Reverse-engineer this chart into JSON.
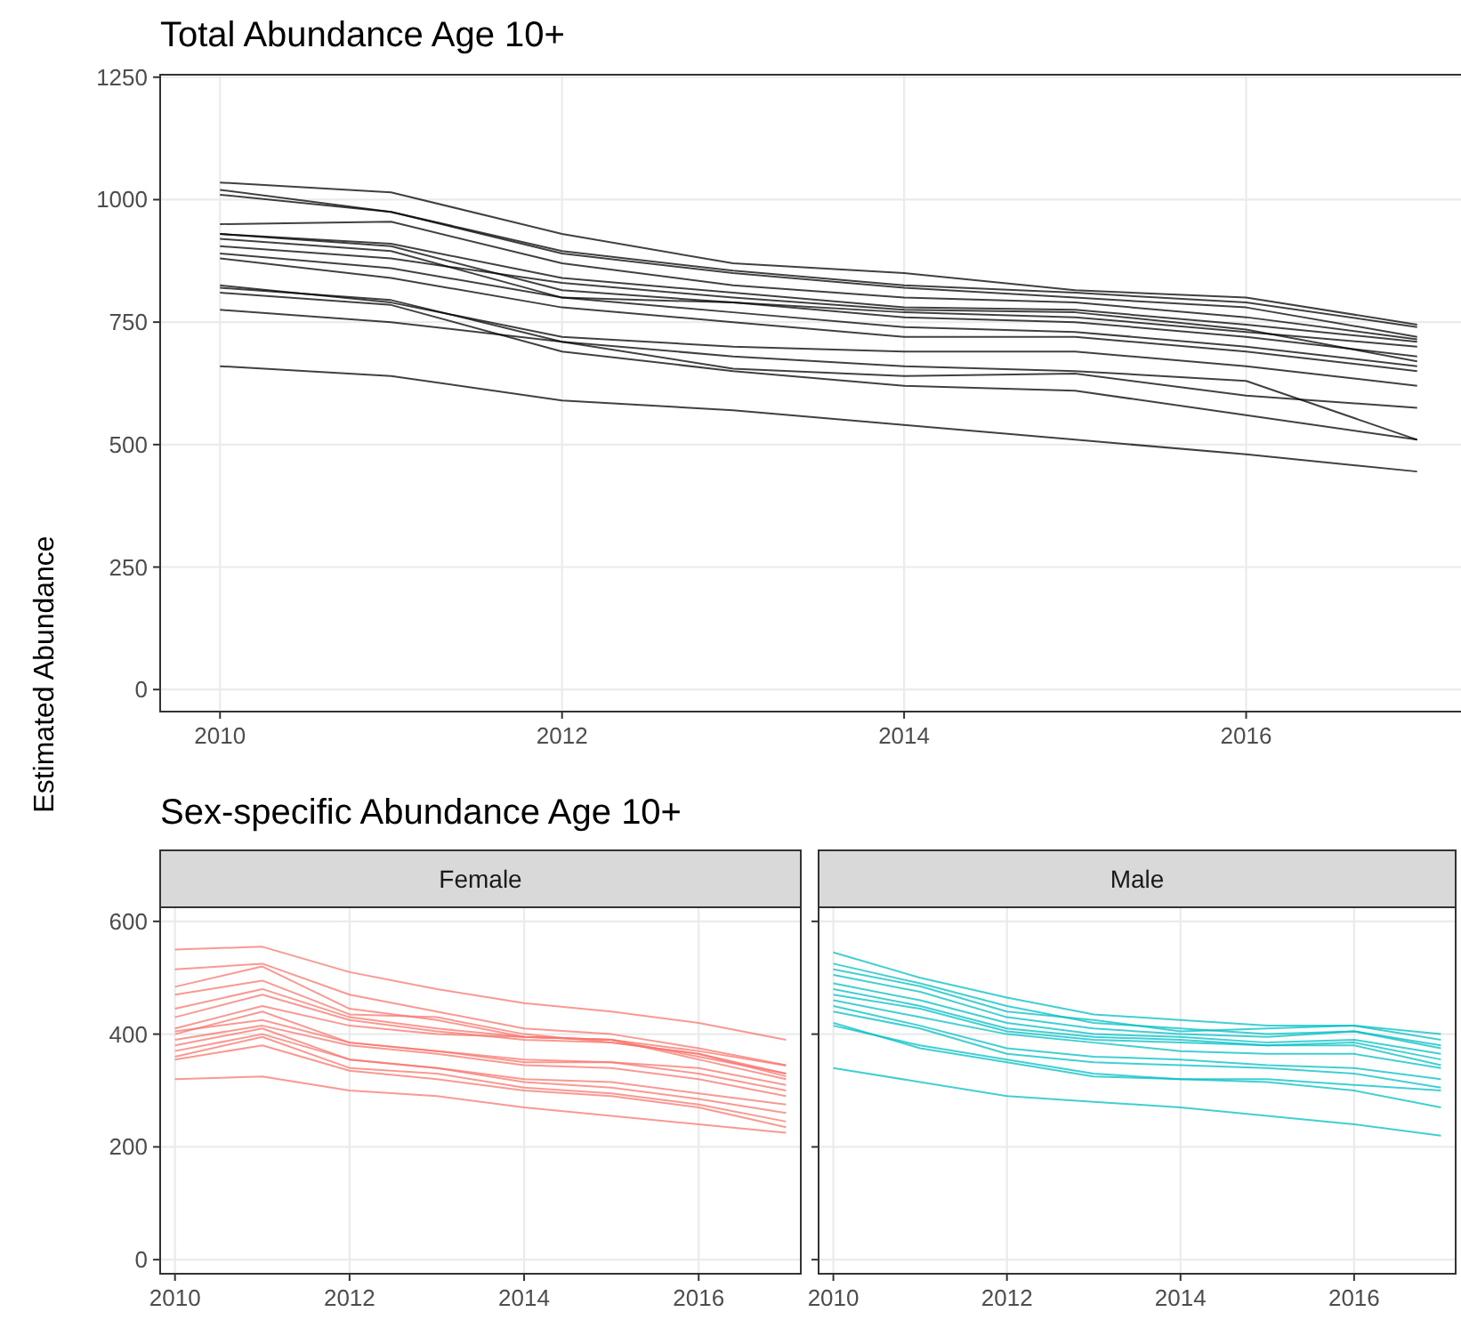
{
  "chart_data": [
    {
      "type": "line",
      "title": "Total Abundance Age 10+",
      "ylabel": "Estimated Abundance",
      "x": [
        2010,
        2011,
        2012,
        2013,
        2014,
        2015,
        2016,
        2017
      ],
      "xlim": [
        2009.65,
        2017.35
      ],
      "ylim": [
        -45,
        1255
      ],
      "xticks": [
        2010,
        2012,
        2014,
        2016
      ],
      "yticks": [
        0,
        250,
        500,
        750,
        1000,
        1250
      ],
      "grid": true,
      "series": [
        {
          "color": "#000000",
          "values": [
            1035,
            1015,
            930,
            870,
            850,
            815,
            800,
            745
          ]
        },
        {
          "color": "#000000",
          "values": [
            1020,
            975,
            895,
            855,
            825,
            810,
            790,
            740
          ]
        },
        {
          "color": "#000000",
          "values": [
            1010,
            975,
            890,
            850,
            820,
            800,
            780,
            720
          ]
        },
        {
          "color": "#000000",
          "values": [
            950,
            955,
            870,
            825,
            800,
            790,
            760,
            715
          ]
        },
        {
          "color": "#000000",
          "values": [
            930,
            910,
            840,
            810,
            780,
            775,
            745,
            710
          ]
        },
        {
          "color": "#000000",
          "values": [
            930,
            905,
            815,
            790,
            770,
            760,
            730,
            700
          ]
        },
        {
          "color": "#000000",
          "values": [
            920,
            895,
            800,
            790,
            760,
            750,
            720,
            680
          ]
        },
        {
          "color": "#000000",
          "values": [
            905,
            880,
            830,
            800,
            775,
            770,
            735,
            670
          ]
        },
        {
          "color": "#000000",
          "values": [
            890,
            860,
            800,
            770,
            740,
            730,
            700,
            660
          ]
        },
        {
          "color": "#000000",
          "values": [
            880,
            840,
            780,
            750,
            720,
            720,
            690,
            650
          ]
        },
        {
          "color": "#000000",
          "values": [
            825,
            790,
            720,
            700,
            690,
            690,
            660,
            620
          ]
        },
        {
          "color": "#000000",
          "values": [
            820,
            795,
            710,
            655,
            640,
            645,
            600,
            575
          ]
        },
        {
          "color": "#000000",
          "values": [
            810,
            785,
            690,
            650,
            620,
            610,
            560,
            510
          ]
        },
        {
          "color": "#000000",
          "values": [
            775,
            750,
            710,
            680,
            660,
            650,
            630,
            510
          ]
        },
        {
          "color": "#000000",
          "values": [
            660,
            640,
            590,
            570,
            540,
            510,
            480,
            445
          ]
        }
      ]
    },
    {
      "type": "line",
      "title": "Sex-specific Abundance Age 10+",
      "subtitle": "Female",
      "x": [
        2010,
        2011,
        2012,
        2013,
        2014,
        2015,
        2016,
        2017
      ],
      "xlim": [
        2009.83,
        2017.17
      ],
      "ylim": [
        -25,
        625
      ],
      "xticks": [
        2010,
        2012,
        2014,
        2016
      ],
      "yticks": [
        0,
        200,
        400,
        600
      ],
      "grid": true,
      "series": [
        {
          "color": "#f8766d",
          "values": [
            550,
            555,
            510,
            480,
            455,
            440,
            420,
            390
          ]
        },
        {
          "color": "#f8766d",
          "values": [
            515,
            525,
            470,
            440,
            410,
            400,
            375,
            345
          ]
        },
        {
          "color": "#f8766d",
          "values": [
            484,
            520,
            445,
            425,
            395,
            390,
            370,
            344
          ]
        },
        {
          "color": "#f8766d",
          "values": [
            470,
            495,
            435,
            430,
            400,
            385,
            365,
            330
          ]
        },
        {
          "color": "#f8766d",
          "values": [
            445,
            480,
            430,
            410,
            395,
            390,
            360,
            330
          ]
        },
        {
          "color": "#f8766d",
          "values": [
            430,
            470,
            425,
            405,
            390,
            385,
            365,
            325
          ]
        },
        {
          "color": "#f8766d",
          "values": [
            410,
            450,
            415,
            400,
            395,
            390,
            355,
            320
          ]
        },
        {
          "color": "#f8766d",
          "values": [
            405,
            425,
            385,
            370,
            350,
            350,
            330,
            300
          ]
        },
        {
          "color": "#f8766d",
          "values": [
            390,
            415,
            380,
            365,
            345,
            340,
            320,
            290
          ]
        },
        {
          "color": "#f8766d",
          "values": [
            380,
            410,
            355,
            340,
            320,
            315,
            295,
            275
          ]
        },
        {
          "color": "#f8766d",
          "values": [
            370,
            400,
            355,
            340,
            315,
            305,
            285,
            260
          ]
        },
        {
          "color": "#f8766d",
          "values": [
            360,
            395,
            340,
            330,
            305,
            295,
            275,
            245
          ]
        },
        {
          "color": "#f8766d",
          "values": [
            355,
            380,
            335,
            320,
            300,
            290,
            270,
            235
          ]
        },
        {
          "color": "#f8766d",
          "values": [
            320,
            325,
            300,
            290,
            270,
            255,
            240,
            225
          ]
        },
        {
          "color": "#f8766d",
          "values": [
            400,
            440,
            385,
            370,
            355,
            350,
            340,
            310
          ]
        }
      ]
    },
    {
      "type": "line",
      "subtitle": "Male",
      "x": [
        2010,
        2011,
        2012,
        2013,
        2014,
        2015,
        2016,
        2017
      ],
      "xlim": [
        2009.83,
        2017.17
      ],
      "ylim": [
        -25,
        625
      ],
      "xticks": [
        2010,
        2012,
        2014,
        2016
      ],
      "yticks": [
        0,
        200,
        400,
        600
      ],
      "tick_labels": "x",
      "grid": true,
      "series": [
        {
          "color": "#00bfc4",
          "values": [
            545,
            500,
            465,
            435,
            425,
            415,
            415,
            390
          ]
        },
        {
          "color": "#00bfc4",
          "values": [
            525,
            490,
            450,
            420,
            410,
            400,
            405,
            375
          ]
        },
        {
          "color": "#00bfc4",
          "values": [
            515,
            485,
            440,
            425,
            405,
            410,
            415,
            400
          ]
        },
        {
          "color": "#00bfc4",
          "values": [
            505,
            475,
            430,
            410,
            400,
            395,
            405,
            380
          ]
        },
        {
          "color": "#00bfc4",
          "values": [
            490,
            460,
            420,
            400,
            395,
            385,
            390,
            365
          ]
        },
        {
          "color": "#00bfc4",
          "values": [
            480,
            450,
            410,
            395,
            390,
            380,
            385,
            355
          ]
        },
        {
          "color": "#00bfc4",
          "values": [
            470,
            445,
            405,
            390,
            385,
            380,
            380,
            345
          ]
        },
        {
          "color": "#00bfc4",
          "values": [
            460,
            430,
            400,
            385,
            370,
            365,
            365,
            340
          ]
        },
        {
          "color": "#00bfc4",
          "values": [
            450,
            415,
            375,
            360,
            355,
            345,
            340,
            320
          ]
        },
        {
          "color": "#00bfc4",
          "values": [
            440,
            410,
            365,
            350,
            345,
            340,
            330,
            305
          ]
        },
        {
          "color": "#00bfc4",
          "values": [
            420,
            375,
            350,
            325,
            320,
            315,
            300,
            270
          ]
        },
        {
          "color": "#00bfc4",
          "values": [
            415,
            380,
            355,
            330,
            320,
            320,
            310,
            300
          ]
        },
        {
          "color": "#00bfc4",
          "values": [
            340,
            315,
            290,
            280,
            270,
            255,
            240,
            220
          ]
        }
      ]
    }
  ]
}
